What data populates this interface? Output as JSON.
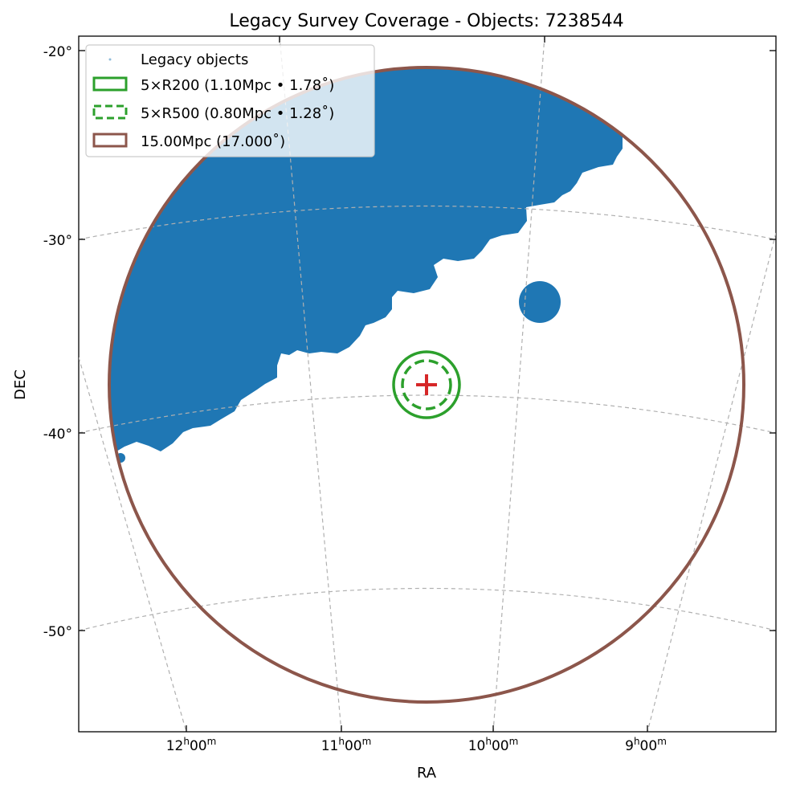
{
  "chart_data": {
    "type": "scatter",
    "title": "Legacy Survey Coverage - Objects: 7238544",
    "xlabel": "RA",
    "ylabel": "DEC",
    "projection": "gnomonic sky map",
    "grid": true,
    "legend_position": "top-left",
    "center": {
      "ra_hours": 10.43,
      "dec_deg": -37.4
    },
    "y_ticks": [
      "-20°",
      "-30°",
      "-40°",
      "-50°"
    ],
    "x_tick_labels": [
      {
        "h": "12",
        "m": "00"
      },
      {
        "h": "11",
        "m": "00"
      },
      {
        "h": "10",
        "m": "00"
      },
      {
        "h": "9",
        "m": "00"
      }
    ],
    "legend": [
      {
        "label": "Legacy objects",
        "style": "point",
        "color": "#1f77b4"
      },
      {
        "label": "5×R200 (1.10Mpc • 1.78˚)",
        "style": "solid",
        "color": "#2ca02c"
      },
      {
        "label": "5×R500 (0.80Mpc • 1.28˚)",
        "style": "dashed",
        "color": "#2ca02c"
      },
      {
        "label": "15.00Mpc (17.000˚)",
        "style": "solid",
        "color": "#8c564b"
      }
    ],
    "circles": [
      {
        "name": "5×R200",
        "radius_deg": 1.78,
        "color": "#2ca02c",
        "dashed": false
      },
      {
        "name": "5×R500",
        "radius_deg": 1.28,
        "color": "#2ca02c",
        "dashed": true
      },
      {
        "name": "15.00Mpc",
        "radius_deg": 17.0,
        "color": "#8c564b",
        "dashed": false
      }
    ],
    "marker": {
      "style": "plus",
      "color": "#d62728"
    },
    "coverage_color": "#1f77b4",
    "object_count": 7238544
  }
}
